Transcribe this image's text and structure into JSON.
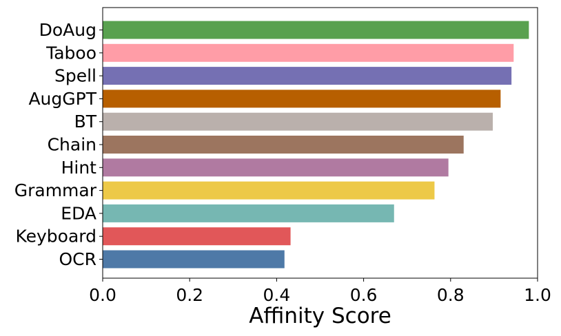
{
  "chart_data": {
    "type": "bar",
    "orientation": "horizontal",
    "title": "",
    "xlabel": "Affinity Score",
    "ylabel": "",
    "xlim": [
      0.0,
      1.0
    ],
    "xticks": [
      0.0,
      0.2,
      0.4,
      0.6,
      0.8,
      1.0
    ],
    "xtick_labels": [
      "0.0",
      "0.2",
      "0.4",
      "0.6",
      "0.8",
      "1.0"
    ],
    "grid": false,
    "legend": "none",
    "categories": [
      "DoAug",
      "Taboo",
      "Spell",
      "AugGPT",
      "BT",
      "Chain",
      "Hint",
      "Grammar",
      "EDA",
      "Keyboard",
      "OCR"
    ],
    "values": [
      0.98,
      0.945,
      0.94,
      0.915,
      0.897,
      0.83,
      0.795,
      0.763,
      0.67,
      0.432,
      0.418
    ],
    "colors": [
      "#59a14f",
      "#ff9da7",
      "#7570b3",
      "#b75f00",
      "#bab0ac",
      "#9c755f",
      "#b07aa1",
      "#edc948",
      "#76b7b2",
      "#e15759",
      "#4e79a7"
    ]
  }
}
